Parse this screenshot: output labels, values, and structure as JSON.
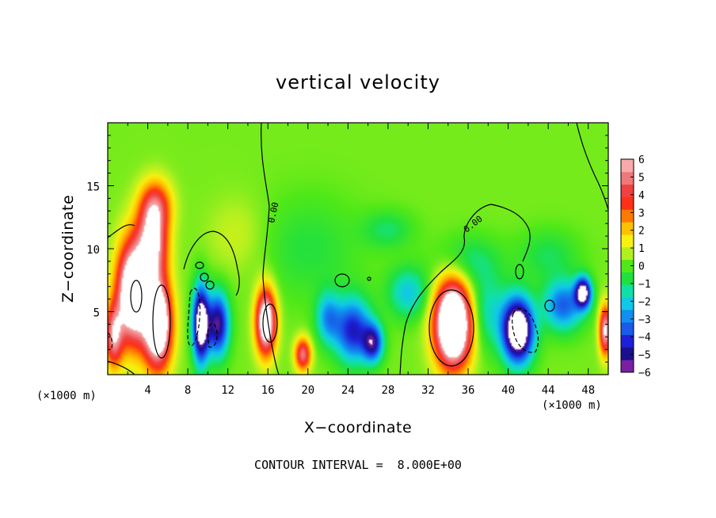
{
  "chart_data": {
    "type": "heatmap",
    "title": "vertical velocity",
    "xlabel": "X−coordinate",
    "ylabel": "Z−coordinate",
    "x_unit": "(×1000 m)",
    "y_unit": "(×1000 m)",
    "xlim": [
      0,
      50
    ],
    "ylim": [
      0,
      20
    ],
    "x_ticks": [
      4,
      8,
      12,
      16,
      20,
      24,
      28,
      32,
      36,
      40,
      44,
      48
    ],
    "y_ticks": [
      5,
      10,
      15
    ],
    "colorbar": {
      "range": [
        -6,
        6
      ],
      "ticks": [
        6,
        5,
        4,
        3,
        2,
        1,
        0,
        -1,
        -2,
        -3,
        -4,
        -5,
        -6
      ],
      "tick_labels": [
        "6",
        "5",
        "4",
        "3",
        "2",
        "1",
        "0",
        "−1",
        "−2",
        "−3",
        "−4",
        "−5",
        "−6"
      ],
      "colors": [
        "#7a1fa0",
        "#1a0f8c",
        "#1d20d8",
        "#1a5ae8",
        "#0f8ff0",
        "#10c8e8",
        "#10e0a8",
        "#20e040",
        "#50e818",
        "#b0f020",
        "#f8f010",
        "#ffc000",
        "#ff7a00",
        "#ff3018",
        "#f04040",
        "#f07878",
        "#f8aaaa"
      ],
      "over_color": "#ffffff"
    },
    "contour_interval_text": "CONTOUR INTERVAL =  8.000E+00",
    "contour_labels": [
      "0.00",
      "0.00"
    ],
    "cells": [
      {
        "x": 2.5,
        "z": 6.5,
        "sx": 1.6,
        "sz": 4.0,
        "amp": 9
      },
      {
        "x": 5.0,
        "z": 4.0,
        "sx": 1.4,
        "sz": 3.5,
        "amp": 9
      },
      {
        "x": 4.5,
        "z": 10.5,
        "sx": 1.5,
        "sz": 3.0,
        "amp": 6
      },
      {
        "x": 4.8,
        "z": 13.5,
        "sx": 1.6,
        "sz": 2.0,
        "amp": 3.5
      },
      {
        "x": 0.6,
        "z": 3.0,
        "sx": 0.9,
        "sz": 2.5,
        "amp": 5
      },
      {
        "x": 9.3,
        "z": 4.0,
        "sx": 0.8,
        "sz": 3.0,
        "amp": -8
      },
      {
        "x": 11.0,
        "z": 4.0,
        "sx": 1.1,
        "sz": 2.5,
        "amp": -6
      },
      {
        "x": 15.8,
        "z": 4.2,
        "sx": 1.0,
        "sz": 2.6,
        "amp": 8
      },
      {
        "x": 19.5,
        "z": 1.6,
        "sx": 0.8,
        "sz": 1.3,
        "amp": 5
      },
      {
        "x": 24.5,
        "z": 3.5,
        "sx": 1.8,
        "sz": 2.5,
        "amp": -5
      },
      {
        "x": 26.5,
        "z": 2.5,
        "sx": 1.0,
        "sz": 1.5,
        "amp": -5
      },
      {
        "x": 22.0,
        "z": 4.5,
        "sx": 1.2,
        "sz": 2.0,
        "amp": -3
      },
      {
        "x": 34.5,
        "z": 4.0,
        "sx": 1.8,
        "sz": 3.3,
        "amp": 11
      },
      {
        "x": 41.0,
        "z": 3.5,
        "sx": 1.5,
        "sz": 2.5,
        "amp": -9
      },
      {
        "x": 45.5,
        "z": 5.5,
        "sx": 2.0,
        "sz": 2.0,
        "amp": -4
      },
      {
        "x": 47.5,
        "z": 6.5,
        "sx": 0.8,
        "sz": 1.2,
        "amp": -7
      },
      {
        "x": 49.7,
        "z": 3.5,
        "sx": 0.6,
        "sz": 2.0,
        "amp": 6
      },
      {
        "x": 38.0,
        "z": 5.0,
        "sx": 2.0,
        "sz": 3.0,
        "amp": -2
      },
      {
        "x": 30.0,
        "z": 6.5,
        "sx": 2.0,
        "sz": 2.0,
        "amp": -2.5
      },
      {
        "x": 36.0,
        "z": 9.0,
        "sx": 3.0,
        "sz": 2.0,
        "amp": -1.5
      },
      {
        "x": 20.0,
        "z": 10.0,
        "sx": 5.0,
        "sz": 4.0,
        "amp": -1.0
      },
      {
        "x": 28.0,
        "z": 11.5,
        "sx": 2.5,
        "sz": 1.5,
        "amp": -1.3
      },
      {
        "x": 44.0,
        "z": 9.5,
        "sx": 3.0,
        "sz": 2.0,
        "amp": -1.2
      },
      {
        "x": 13.0,
        "z": 11.0,
        "sx": 3.0,
        "sz": 3.0,
        "amp": 0.8
      }
    ]
  }
}
